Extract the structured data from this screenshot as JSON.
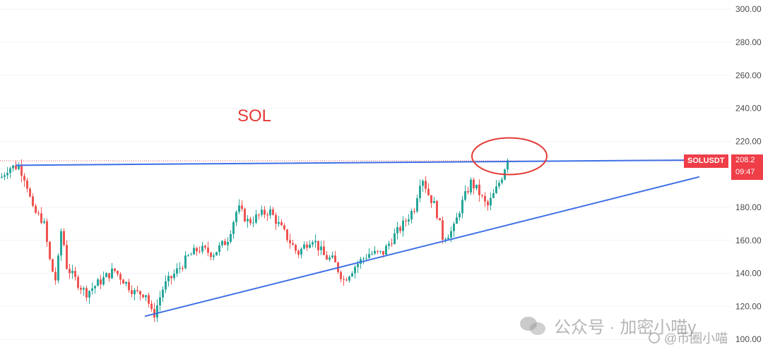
{
  "chart_data": {
    "type": "candlestick",
    "title": "SOL",
    "symbol_tag": "SOLUSDT",
    "last_price_label": "208.2",
    "countdown_label": "09:47",
    "ylim": [
      110,
      302
    ],
    "y_ticks": [
      "300.00",
      "280.00",
      "260.00",
      "240.00",
      "220.00",
      "180.00",
      "160.00",
      "140.00",
      "120.00",
      "100.00"
    ],
    "last_price": 208.2,
    "colors": {
      "up": "#26a69a",
      "down": "#ef5350",
      "trendline": "#3d6fe6",
      "annotation": "#e53935"
    },
    "anchors": [
      [
        0,
        198
      ],
      [
        10,
        204
      ],
      [
        25,
        205
      ],
      [
        35,
        197
      ],
      [
        45,
        178
      ],
      [
        60,
        172
      ],
      [
        70,
        145
      ],
      [
        78,
        135
      ],
      [
        86,
        170
      ],
      [
        92,
        145
      ],
      [
        102,
        138
      ],
      [
        120,
        128
      ],
      [
        140,
        135
      ],
      [
        160,
        142
      ],
      [
        175,
        135
      ],
      [
        190,
        128
      ],
      [
        205,
        128
      ],
      [
        215,
        113
      ],
      [
        230,
        132
      ],
      [
        250,
        142
      ],
      [
        265,
        150
      ],
      [
        280,
        155
      ],
      [
        300,
        152
      ],
      [
        320,
        160
      ],
      [
        335,
        180
      ],
      [
        350,
        171
      ],
      [
        365,
        175
      ],
      [
        380,
        178
      ],
      [
        400,
        165
      ],
      [
        420,
        152
      ],
      [
        440,
        162
      ],
      [
        458,
        150
      ],
      [
        470,
        148
      ],
      [
        485,
        136
      ],
      [
        500,
        144
      ],
      [
        520,
        152
      ],
      [
        540,
        152
      ],
      [
        555,
        162
      ],
      [
        570,
        170
      ],
      [
        585,
        180
      ],
      [
        595,
        200
      ],
      [
        605,
        188
      ],
      [
        615,
        180
      ],
      [
        625,
        162
      ],
      [
        640,
        166
      ],
      [
        650,
        180
      ],
      [
        665,
        195
      ],
      [
        675,
        190
      ],
      [
        688,
        180
      ],
      [
        700,
        190
      ],
      [
        710,
        200
      ],
      [
        718,
        212
      ]
    ],
    "trendlines": {
      "resistance": [
        [
          22,
          205.5
        ],
        [
          968,
          208.6
        ]
      ],
      "support": [
        [
          205,
          114
        ],
        [
          990,
          198.5
        ]
      ]
    },
    "annotations": [
      {
        "shape": "ellipse",
        "center": [
          721,
          211
        ],
        "rx": 53,
        "ry": 26
      }
    ]
  },
  "watermark": {
    "text": "公众号 · 加密小喵y",
    "sub": "@币圈小喵"
  }
}
